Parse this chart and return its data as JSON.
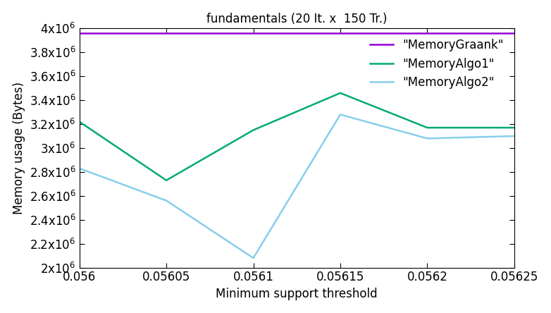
{
  "title": "fundamentals (20 It. x  150 Tr.)",
  "xlabel": "Minimum support threshold",
  "ylabel": "Memory usage (Bytes)",
  "xlim": [
    0.056,
    0.05625
  ],
  "ylim": [
    2000000,
    4000000
  ],
  "xticks": [
    0.056,
    0.05605,
    0.0561,
    0.05615,
    0.0562,
    0.05625
  ],
  "yticks": [
    2000000,
    2200000,
    2400000,
    2600000,
    2800000,
    3000000,
    3200000,
    3400000,
    3600000,
    3800000,
    4000000
  ],
  "ytick_labels": [
    "2x10$^6$",
    "2.2x10$^6$",
    "2.4x10$^6$",
    "2.6x10$^6$",
    "2.8x10$^6$",
    "3x10$^6$",
    "3.2x10$^6$",
    "3.4x10$^6$",
    "3.6x10$^6$",
    "3.8x10$^6$",
    "4x10$^6$"
  ],
  "series": [
    {
      "label": "\"MemoryGraank\"",
      "color": "#9400d3",
      "linewidth": 1.8,
      "x": [
        0.056,
        0.05605,
        0.0561,
        0.05615,
        0.0562,
        0.05625
      ],
      "y": [
        3960000,
        3960000,
        3960000,
        3960000,
        3960000,
        3960000
      ]
    },
    {
      "label": "\"MemoryAlgo1\"",
      "color": "#00aa77",
      "linewidth": 1.8,
      "x": [
        0.056,
        0.05605,
        0.0561,
        0.05615,
        0.0562,
        0.05625
      ],
      "y": [
        3220000,
        2730000,
        3150000,
        3460000,
        3170000,
        3170000
      ]
    },
    {
      "label": "\"MemoryAlgo2\"",
      "color": "#87ceeb",
      "linewidth": 1.8,
      "x": [
        0.056,
        0.05605,
        0.0561,
        0.05615,
        0.0562,
        0.05625
      ],
      "y": [
        2830000,
        2560000,
        2080000,
        3280000,
        3080000,
        3100000
      ]
    }
  ],
  "legend_loc": "upper right",
  "title_fontsize": 12,
  "label_fontsize": 12,
  "tick_fontsize": 12,
  "legend_fontsize": 12
}
